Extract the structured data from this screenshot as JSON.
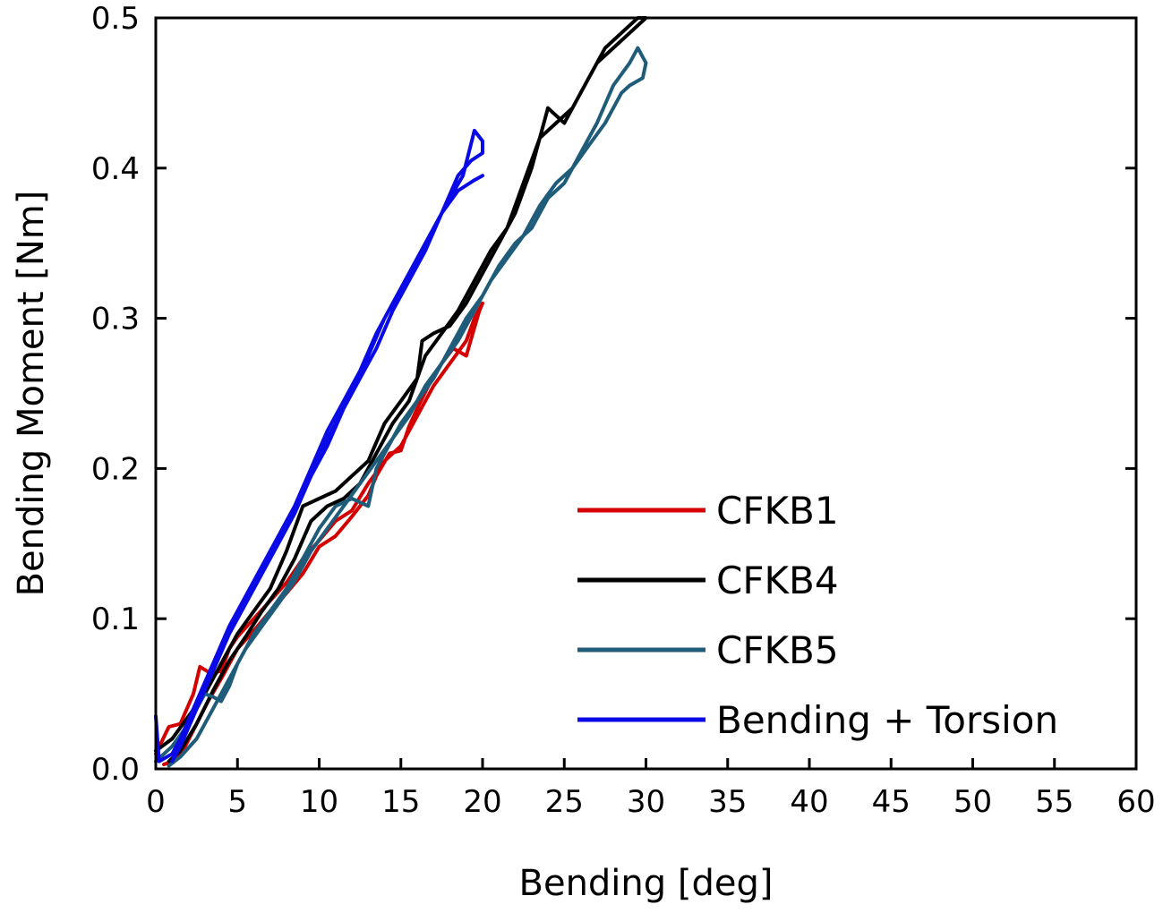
{
  "chart_data": {
    "type": "line",
    "xlabel": "Bending [deg]",
    "ylabel": "Bending Moment [Nm]",
    "xlim": [
      0,
      60
    ],
    "ylim": [
      0,
      0.5
    ],
    "x_ticks": [
      "0",
      "5",
      "10",
      "15",
      "20",
      "25",
      "30",
      "35",
      "40",
      "45",
      "50",
      "55",
      "60"
    ],
    "y_ticks": [
      "0.0",
      "0.1",
      "0.2",
      "0.3",
      "0.4",
      "0.5"
    ],
    "grid": false,
    "legend_position": "bottom-right",
    "series": [
      {
        "name": "CFKB1",
        "color": "#d40000",
        "points": [
          [
            0,
            0.01
          ],
          [
            0.8,
            0.028
          ],
          [
            1.5,
            0.03
          ],
          [
            2.3,
            0.05
          ],
          [
            2.7,
            0.068
          ],
          [
            3.3,
            0.064
          ],
          [
            4,
            0.065
          ],
          [
            4.5,
            0.08
          ],
          [
            5,
            0.088
          ],
          [
            6,
            0.1
          ],
          [
            7,
            0.112
          ],
          [
            8,
            0.124
          ],
          [
            9,
            0.14
          ],
          [
            10,
            0.152
          ],
          [
            11,
            0.165
          ],
          [
            12,
            0.172
          ],
          [
            13,
            0.19
          ],
          [
            14,
            0.205
          ],
          [
            15,
            0.215
          ],
          [
            16,
            0.235
          ],
          [
            17,
            0.255
          ],
          [
            18,
            0.27
          ],
          [
            19,
            0.285
          ],
          [
            19.5,
            0.3
          ],
          [
            20,
            0.31
          ],
          [
            19.8,
            0.305
          ],
          [
            19,
            0.275
          ],
          [
            18.2,
            0.28
          ],
          [
            17.5,
            0.27
          ],
          [
            17,
            0.262
          ],
          [
            16,
            0.24
          ],
          [
            15.5,
            0.228
          ],
          [
            15,
            0.212
          ],
          [
            14.3,
            0.21
          ],
          [
            13.5,
            0.195
          ],
          [
            13,
            0.182
          ],
          [
            12,
            0.168
          ],
          [
            11,
            0.155
          ],
          [
            10,
            0.148
          ],
          [
            9,
            0.13
          ],
          [
            8,
            0.117
          ],
          [
            7,
            0.105
          ],
          [
            6,
            0.092
          ],
          [
            5,
            0.08
          ],
          [
            4,
            0.06
          ],
          [
            3.2,
            0.045
          ],
          [
            2.5,
            0.03
          ],
          [
            1.8,
            0.015
          ],
          [
            1,
            0.005
          ],
          [
            0.5,
            0.003
          ]
        ]
      },
      {
        "name": "CFKB4",
        "color": "#000000",
        "points": [
          [
            0,
            0.012
          ],
          [
            1,
            0.02
          ],
          [
            2,
            0.035
          ],
          [
            3,
            0.05
          ],
          [
            4,
            0.07
          ],
          [
            5,
            0.09
          ],
          [
            6,
            0.105
          ],
          [
            7,
            0.12
          ],
          [
            8,
            0.145
          ],
          [
            9,
            0.175
          ],
          [
            10,
            0.18
          ],
          [
            11,
            0.185
          ],
          [
            12,
            0.195
          ],
          [
            13,
            0.205
          ],
          [
            14,
            0.23
          ],
          [
            15,
            0.245
          ],
          [
            16,
            0.26
          ],
          [
            16.3,
            0.285
          ],
          [
            17,
            0.29
          ],
          [
            18,
            0.295
          ],
          [
            19,
            0.31
          ],
          [
            20,
            0.33
          ],
          [
            21,
            0.35
          ],
          [
            22,
            0.37
          ],
          [
            23,
            0.4
          ],
          [
            24,
            0.44
          ],
          [
            25,
            0.43
          ],
          [
            26,
            0.45
          ],
          [
            27,
            0.47
          ],
          [
            28,
            0.48
          ],
          [
            29,
            0.49
          ],
          [
            30,
            0.5
          ],
          [
            29.5,
            0.5
          ],
          [
            28.5,
            0.49
          ],
          [
            27.5,
            0.48
          ],
          [
            26.5,
            0.46
          ],
          [
            25.5,
            0.44
          ],
          [
            24.5,
            0.43
          ],
          [
            23.5,
            0.42
          ],
          [
            22.5,
            0.39
          ],
          [
            21.5,
            0.36
          ],
          [
            20.5,
            0.345
          ],
          [
            19.5,
            0.325
          ],
          [
            18.5,
            0.305
          ],
          [
            17.5,
            0.29
          ],
          [
            16.5,
            0.275
          ],
          [
            15.5,
            0.245
          ],
          [
            14.5,
            0.23
          ],
          [
            13.5,
            0.21
          ],
          [
            12.5,
            0.19
          ],
          [
            11.5,
            0.18
          ],
          [
            10.5,
            0.175
          ],
          [
            9.5,
            0.165
          ],
          [
            8.5,
            0.14
          ],
          [
            7.5,
            0.12
          ],
          [
            6.5,
            0.105
          ],
          [
            5.5,
            0.088
          ],
          [
            4.5,
            0.072
          ],
          [
            3.5,
            0.052
          ],
          [
            2.5,
            0.03
          ],
          [
            1.5,
            0.012
          ],
          [
            0.8,
            0.005
          ]
        ]
      },
      {
        "name": "CFKB5",
        "color": "#1f5c7a",
        "points": [
          [
            0,
            0.005
          ],
          [
            1,
            0.015
          ],
          [
            2,
            0.03
          ],
          [
            3,
            0.05
          ],
          [
            3.5,
            0.048
          ],
          [
            4,
            0.045
          ],
          [
            4.5,
            0.055
          ],
          [
            5,
            0.07
          ],
          [
            6,
            0.09
          ],
          [
            7,
            0.105
          ],
          [
            8,
            0.12
          ],
          [
            9,
            0.14
          ],
          [
            10,
            0.16
          ],
          [
            11,
            0.175
          ],
          [
            12,
            0.18
          ],
          [
            13,
            0.175
          ],
          [
            13.5,
            0.2
          ],
          [
            14,
            0.21
          ],
          [
            15,
            0.23
          ],
          [
            16,
            0.245
          ],
          [
            17,
            0.26
          ],
          [
            18,
            0.28
          ],
          [
            19,
            0.3
          ],
          [
            20,
            0.315
          ],
          [
            21,
            0.335
          ],
          [
            22,
            0.35
          ],
          [
            23,
            0.36
          ],
          [
            24,
            0.38
          ],
          [
            25,
            0.39
          ],
          [
            26,
            0.41
          ],
          [
            27,
            0.43
          ],
          [
            28,
            0.455
          ],
          [
            29,
            0.47
          ],
          [
            29.5,
            0.48
          ],
          [
            30,
            0.47
          ],
          [
            29.8,
            0.46
          ],
          [
            29,
            0.455
          ],
          [
            28.5,
            0.45
          ],
          [
            27.5,
            0.43
          ],
          [
            26.5,
            0.415
          ],
          [
            25.5,
            0.4
          ],
          [
            24.5,
            0.39
          ],
          [
            23.5,
            0.375
          ],
          [
            22.5,
            0.355
          ],
          [
            21.5,
            0.34
          ],
          [
            20.5,
            0.325
          ],
          [
            19.5,
            0.305
          ],
          [
            18.5,
            0.285
          ],
          [
            17.5,
            0.27
          ],
          [
            16.5,
            0.255
          ],
          [
            15.5,
            0.235
          ],
          [
            14.5,
            0.22
          ],
          [
            13.5,
            0.205
          ],
          [
            12.5,
            0.19
          ],
          [
            11.5,
            0.175
          ],
          [
            10.5,
            0.16
          ],
          [
            9.5,
            0.145
          ],
          [
            8.5,
            0.125
          ],
          [
            7.5,
            0.11
          ],
          [
            6.5,
            0.095
          ],
          [
            5.5,
            0.08
          ],
          [
            4.5,
            0.06
          ],
          [
            3.5,
            0.04
          ],
          [
            2.5,
            0.02
          ],
          [
            1.5,
            0.008
          ],
          [
            0.8,
            0.002
          ]
        ]
      },
      {
        "name": "Bending + Torsion",
        "color": "#0a0ae6",
        "points": [
          [
            0,
            0.035
          ],
          [
            0.2,
            0.005
          ],
          [
            1,
            0.01
          ],
          [
            2,
            0.03
          ],
          [
            3,
            0.055
          ],
          [
            4,
            0.08
          ],
          [
            5,
            0.105
          ],
          [
            6,
            0.125
          ],
          [
            7,
            0.145
          ],
          [
            8,
            0.165
          ],
          [
            9,
            0.185
          ],
          [
            10,
            0.21
          ],
          [
            11,
            0.23
          ],
          [
            12,
            0.255
          ],
          [
            13,
            0.275
          ],
          [
            14,
            0.3
          ],
          [
            15,
            0.32
          ],
          [
            16,
            0.34
          ],
          [
            17,
            0.36
          ],
          [
            18,
            0.38
          ],
          [
            18.8,
            0.395
          ],
          [
            19.5,
            0.425
          ],
          [
            20,
            0.418
          ],
          [
            20,
            0.41
          ],
          [
            19.3,
            0.405
          ],
          [
            18.5,
            0.395
          ],
          [
            17.5,
            0.37
          ],
          [
            16.5,
            0.345
          ],
          [
            15.5,
            0.325
          ],
          [
            14.5,
            0.305
          ],
          [
            13.5,
            0.28
          ],
          [
            12.5,
            0.26
          ],
          [
            11.5,
            0.24
          ],
          [
            10.5,
            0.215
          ],
          [
            9.5,
            0.195
          ],
          [
            8.5,
            0.17
          ],
          [
            7.5,
            0.15
          ],
          [
            6.5,
            0.13
          ],
          [
            5.5,
            0.11
          ],
          [
            4.5,
            0.09
          ],
          [
            3.5,
            0.065
          ],
          [
            2.5,
            0.04
          ],
          [
            1.5,
            0.015
          ],
          [
            1,
            0.005
          ],
          [
            1.5,
            0.02
          ],
          [
            2.5,
            0.045
          ],
          [
            3.5,
            0.07
          ],
          [
            4.5,
            0.095
          ],
          [
            5.5,
            0.115
          ],
          [
            6.5,
            0.135
          ],
          [
            7.5,
            0.155
          ],
          [
            8.5,
            0.175
          ],
          [
            9.5,
            0.2
          ],
          [
            10.5,
            0.225
          ],
          [
            11.5,
            0.245
          ],
          [
            12.5,
            0.265
          ],
          [
            13.5,
            0.29
          ],
          [
            14.5,
            0.31
          ],
          [
            15.5,
            0.33
          ],
          [
            16.5,
            0.35
          ],
          [
            17.5,
            0.37
          ],
          [
            18.5,
            0.385
          ],
          [
            19.5,
            0.392
          ],
          [
            20,
            0.395
          ]
        ]
      }
    ]
  }
}
